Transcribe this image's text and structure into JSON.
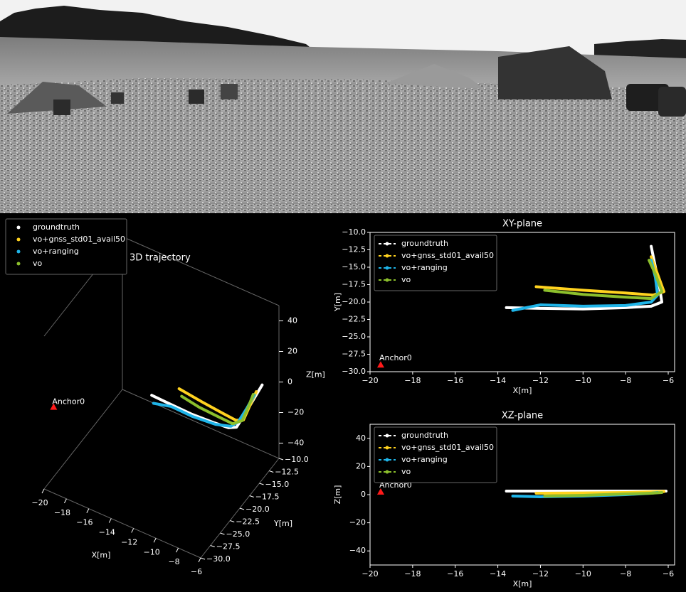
{
  "chart_data": [
    {
      "type": "line3d",
      "title": "3D trajectory",
      "xlabel": "X[m]",
      "ylabel": "Y[m]",
      "zlabel": "Z[m]",
      "xlim": [
        -20,
        -6
      ],
      "ylim": [
        -30,
        -10
      ],
      "zlim": [
        -50,
        50
      ],
      "xticks": [
        {
          "value": -20,
          "label": "−20"
        },
        {
          "value": -18,
          "label": "−18"
        },
        {
          "value": -16,
          "label": "−16"
        },
        {
          "value": -14,
          "label": "−14"
        },
        {
          "value": -12,
          "label": "−12"
        },
        {
          "value": -10,
          "label": "−10"
        },
        {
          "value": -8,
          "label": "−8"
        },
        {
          "value": -6,
          "label": "−6"
        }
      ],
      "yticks": [
        {
          "value": -30,
          "label": "−30.0"
        },
        {
          "value": -27.5,
          "label": "−27.5"
        },
        {
          "value": -25,
          "label": "−25.0"
        },
        {
          "value": -22.5,
          "label": "−22.5"
        },
        {
          "value": -20,
          "label": "−20.0"
        },
        {
          "value": -17.5,
          "label": "−17.5"
        },
        {
          "value": -15,
          "label": "−15.0"
        },
        {
          "value": -12.5,
          "label": "−12.5"
        },
        {
          "value": -10,
          "label": "−10.0"
        }
      ],
      "zticks": [
        {
          "value": -40,
          "label": "−40"
        },
        {
          "value": -20,
          "label": "−20"
        },
        0,
        20,
        40
      ],
      "legend": "upper left",
      "series": [
        {
          "name": "groundtruth",
          "color": "#ffffff",
          "x": [
            -13.6,
            -12,
            -10,
            -8,
            -6.8,
            -6.3,
            -6.4,
            -6.6,
            -6.8
          ],
          "y": [
            -20.8,
            -20.9,
            -21,
            -20.8,
            -20.6,
            -20,
            -18,
            -15,
            -12
          ],
          "z": [
            2,
            2,
            2,
            2,
            2,
            2,
            2,
            2,
            2
          ]
        },
        {
          "name": "vo+gnss_std01_avail50",
          "color": "#ffd21f",
          "x": [
            -12.2,
            -10,
            -8,
            -6.7,
            -6.2,
            -6.5,
            -6.8
          ],
          "y": [
            -17.8,
            -18.3,
            -18.7,
            -19,
            -18.5,
            -16,
            -13.5
          ],
          "z": [
            1,
            1.2,
            1.5,
            2,
            2.2,
            2.5,
            2.5
          ]
        },
        {
          "name": "vo+ranging",
          "color": "#1fb4e8",
          "x": [
            -13.3,
            -12,
            -10,
            -8,
            -6.8,
            -6.5,
            -6.6,
            -6.8
          ],
          "y": [
            -21.2,
            -20.4,
            -20.6,
            -20.5,
            -20,
            -19,
            -16.5,
            -14
          ],
          "z": [
            -1,
            -1.5,
            -1,
            0,
            1,
            1.5,
            2,
            2
          ]
        },
        {
          "name": "vo",
          "color": "#8cbf2c",
          "x": [
            -11.8,
            -10,
            -8,
            -6.8,
            -6.3,
            -6.6,
            -6.9
          ],
          "y": [
            -18.3,
            -18.9,
            -19.3,
            -19.5,
            -18.5,
            -16,
            -14
          ],
          "z": [
            -1,
            -0.5,
            0.5,
            1,
            1.5,
            2,
            2
          ]
        }
      ],
      "annotations": [
        {
          "text": "Anchor0",
          "x": -19.5,
          "y": -29,
          "z": 2
        }
      ]
    },
    {
      "type": "line",
      "title": "XY-plane",
      "xlabel": "X[m]",
      "ylabel": "Y[m]",
      "xlim": [
        -20,
        -5.7
      ],
      "ylim": [
        -30,
        -10
      ],
      "xticks": [
        {
          "value": -20,
          "label": "−20"
        },
        {
          "value": -18,
          "label": "−18"
        },
        {
          "value": -16,
          "label": "−16"
        },
        {
          "value": -14,
          "label": "−14"
        },
        {
          "value": -12,
          "label": "−12"
        },
        {
          "value": -10,
          "label": "−10"
        },
        {
          "value": -8,
          "label": "−8"
        },
        {
          "value": -6,
          "label": "−6"
        }
      ],
      "yticks": [
        {
          "value": -30,
          "label": "−30.0"
        },
        {
          "value": -27.5,
          "label": "−27.5"
        },
        {
          "value": -25,
          "label": "−25.0"
        },
        {
          "value": -22.5,
          "label": "−22.5"
        },
        {
          "value": -20,
          "label": "−20.0"
        },
        {
          "value": -17.5,
          "label": "−17.5"
        },
        {
          "value": -15,
          "label": "−15.0"
        },
        {
          "value": -12.5,
          "label": "−12.5"
        },
        {
          "value": -10,
          "label": "−10.0"
        }
      ],
      "legend": "upper left",
      "series": [
        {
          "name": "groundtruth",
          "color": "#ffffff",
          "x": [
            -13.6,
            -12,
            -10,
            -8,
            -6.8,
            -6.3,
            -6.4,
            -6.6,
            -6.8
          ],
          "y": [
            -20.8,
            -20.9,
            -21,
            -20.8,
            -20.6,
            -20,
            -18,
            -15,
            -12
          ]
        },
        {
          "name": "vo+gnss_std01_avail50",
          "color": "#ffd21f",
          "x": [
            -12.2,
            -10,
            -8,
            -6.7,
            -6.2,
            -6.5,
            -6.8
          ],
          "y": [
            -17.8,
            -18.3,
            -18.7,
            -19,
            -18.5,
            -16,
            -13.5
          ]
        },
        {
          "name": "vo+ranging",
          "color": "#1fb4e8",
          "x": [
            -13.3,
            -12,
            -10,
            -8,
            -6.8,
            -6.5,
            -6.6,
            -6.8
          ],
          "y": [
            -21.2,
            -20.4,
            -20.6,
            -20.5,
            -20,
            -19,
            -16.5,
            -14
          ]
        },
        {
          "name": "vo",
          "color": "#8cbf2c",
          "x": [
            -11.8,
            -10,
            -8,
            -6.8,
            -6.3,
            -6.6,
            -6.9
          ],
          "y": [
            -18.3,
            -18.9,
            -19.3,
            -19.5,
            -18.5,
            -16,
            -14
          ]
        }
      ],
      "annotations": [
        {
          "text": "Anchor0",
          "x": -19.5,
          "y": -29
        }
      ]
    },
    {
      "type": "line",
      "title": "XZ-plane",
      "xlabel": "X[m]",
      "ylabel": "Z[m]",
      "xlim": [
        -20,
        -5.7
      ],
      "ylim": [
        -50,
        50
      ],
      "xticks": [
        {
          "value": -20,
          "label": "−20"
        },
        {
          "value": -18,
          "label": "−18"
        },
        {
          "value": -16,
          "label": "−16"
        },
        {
          "value": -14,
          "label": "−14"
        },
        {
          "value": -12,
          "label": "−12"
        },
        {
          "value": -10,
          "label": "−10"
        },
        {
          "value": -8,
          "label": "−8"
        },
        {
          "value": -6,
          "label": "−6"
        }
      ],
      "yticks": [
        {
          "value": -40,
          "label": "−40"
        },
        {
          "value": -20,
          "label": "−20"
        },
        0,
        20,
        40
      ],
      "legend": "upper left",
      "series": [
        {
          "name": "groundtruth",
          "color": "#ffffff",
          "x": [
            -13.6,
            -12,
            -10,
            -8,
            -6.8,
            -6.3,
            -6.1
          ],
          "y": [
            2.5,
            2.5,
            2.5,
            2.5,
            2.5,
            2.5,
            2.5
          ]
        },
        {
          "name": "vo+gnss_std01_avail50",
          "color": "#ffd21f",
          "x": [
            -12.2,
            -10,
            -8,
            -6.7,
            -6.2
          ],
          "y": [
            1,
            1.2,
            1.5,
            2,
            2.2
          ]
        },
        {
          "name": "vo+ranging",
          "color": "#1fb4e8",
          "x": [
            -13.3,
            -12,
            -10,
            -8,
            -6.8,
            -6.5
          ],
          "y": [
            -1,
            -1.5,
            -1,
            0,
            1,
            1.5
          ]
        },
        {
          "name": "vo",
          "color": "#8cbf2c",
          "x": [
            -11.8,
            -10,
            -8,
            -6.8,
            -6.3
          ],
          "y": [
            -1,
            -0.5,
            0.5,
            1,
            1.5
          ]
        }
      ],
      "annotations": [
        {
          "text": "Anchor0",
          "x": -19.5,
          "y": 2
        }
      ]
    }
  ]
}
